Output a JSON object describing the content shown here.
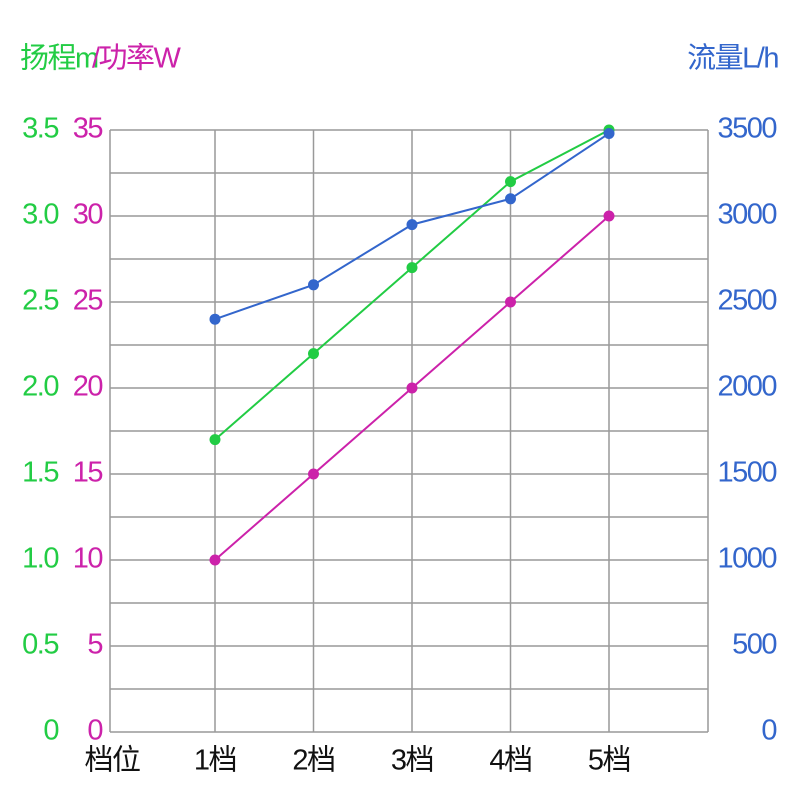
{
  "chart_data": {
    "type": "line",
    "y_title_head": "扬程m",
    "y_title_power": "/功率W",
    "y2_title": "流量L/h",
    "x_label": "档位",
    "categories": [
      "1档",
      "2档",
      "3档",
      "4档",
      "5档"
    ],
    "series": [
      {
        "name": "扬程",
        "color": "#22cc44",
        "axis": "y",
        "values": [
          1.7,
          2.2,
          2.7,
          3.2,
          3.5
        ]
      },
      {
        "name": "功率",
        "color": "#cc22aa",
        "axis": "y3",
        "values": [
          10,
          15,
          20,
          25,
          30
        ]
      },
      {
        "name": "流量",
        "color": "#3366cc",
        "axis": "y2",
        "values": [
          2400,
          2600,
          2950,
          3100,
          3480
        ]
      }
    ],
    "ylim": [
      0,
      3.5
    ],
    "yticks": [
      0,
      0.5,
      {
        "value": 1,
        "label": "1.0"
      },
      1.5,
      {
        "value": 2,
        "label": "2.0"
      },
      2.5,
      {
        "value": 3,
        "label": "3.0"
      },
      3.5
    ],
    "y3lim": [
      0,
      35
    ],
    "y3ticks": [
      0,
      5,
      10,
      15,
      20,
      25,
      30,
      35
    ],
    "y2lim": [
      0,
      3500
    ],
    "y2ticks": [
      0,
      500,
      1000,
      1500,
      2000,
      2500,
      3000,
      3500
    ],
    "grid": true
  }
}
